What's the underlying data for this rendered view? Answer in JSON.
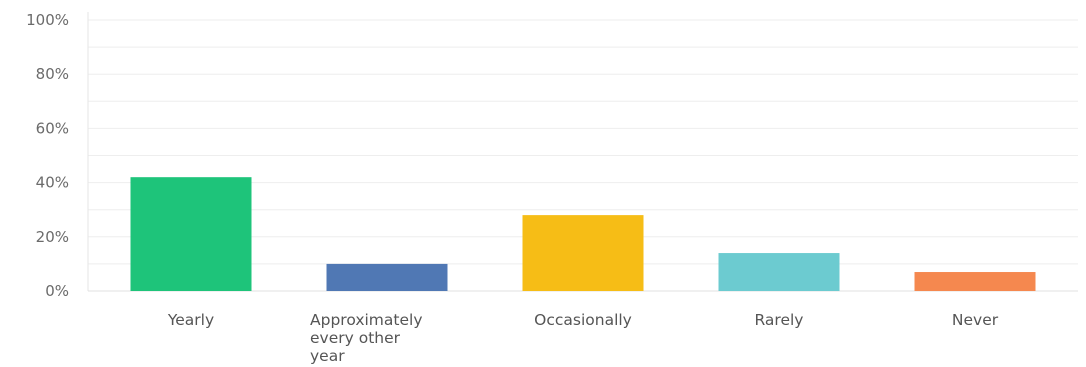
{
  "chart_data": {
    "type": "bar",
    "title": "",
    "xlabel": "",
    "ylabel": "",
    "ylim": [
      0,
      100
    ],
    "yticks": [
      "0%",
      "20%",
      "40%",
      "60%",
      "80%",
      "100%"
    ],
    "grid": true,
    "categories": [
      [
        "Yearly"
      ],
      [
        "Approximately",
        "every other",
        "year"
      ],
      [
        "Occasionally"
      ],
      [
        "Rarely"
      ],
      [
        "Never"
      ]
    ],
    "values": [
      42,
      10,
      28,
      14,
      7
    ],
    "colors": [
      "#1ec47a",
      "#5078b4",
      "#f6bd16",
      "#6ccbd0",
      "#f5884f"
    ]
  }
}
